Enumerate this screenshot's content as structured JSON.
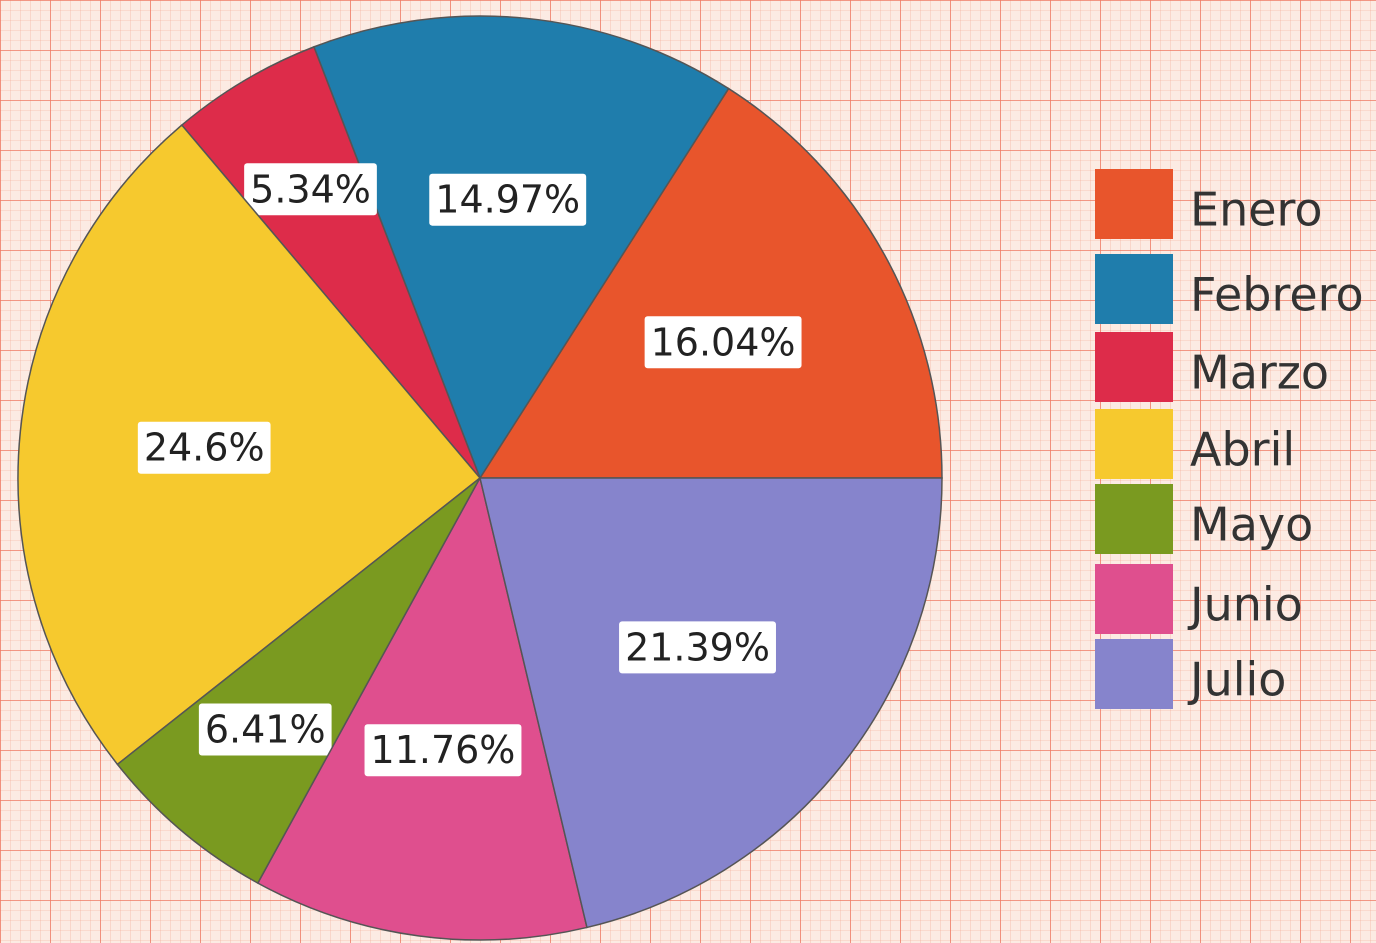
{
  "chart_data": {
    "type": "pie",
    "categories": [
      "Enero",
      "Febrero",
      "Marzo",
      "Abril",
      "Mayo",
      "Junio",
      "Julio"
    ],
    "values": [
      16.04,
      14.97,
      5.34,
      24.6,
      6.41,
      11.76,
      21.39
    ],
    "value_labels": [
      "16.04%",
      "14.97%",
      "5.34%",
      "24.6%",
      "6.41%",
      "11.76%",
      "21.39%"
    ],
    "colors": [
      "#e8552c",
      "#1f7dac",
      "#dd2c4a",
      "#f6c92e",
      "#7a9a20",
      "#df4f8e",
      "#8684cc"
    ],
    "legend": "right"
  }
}
